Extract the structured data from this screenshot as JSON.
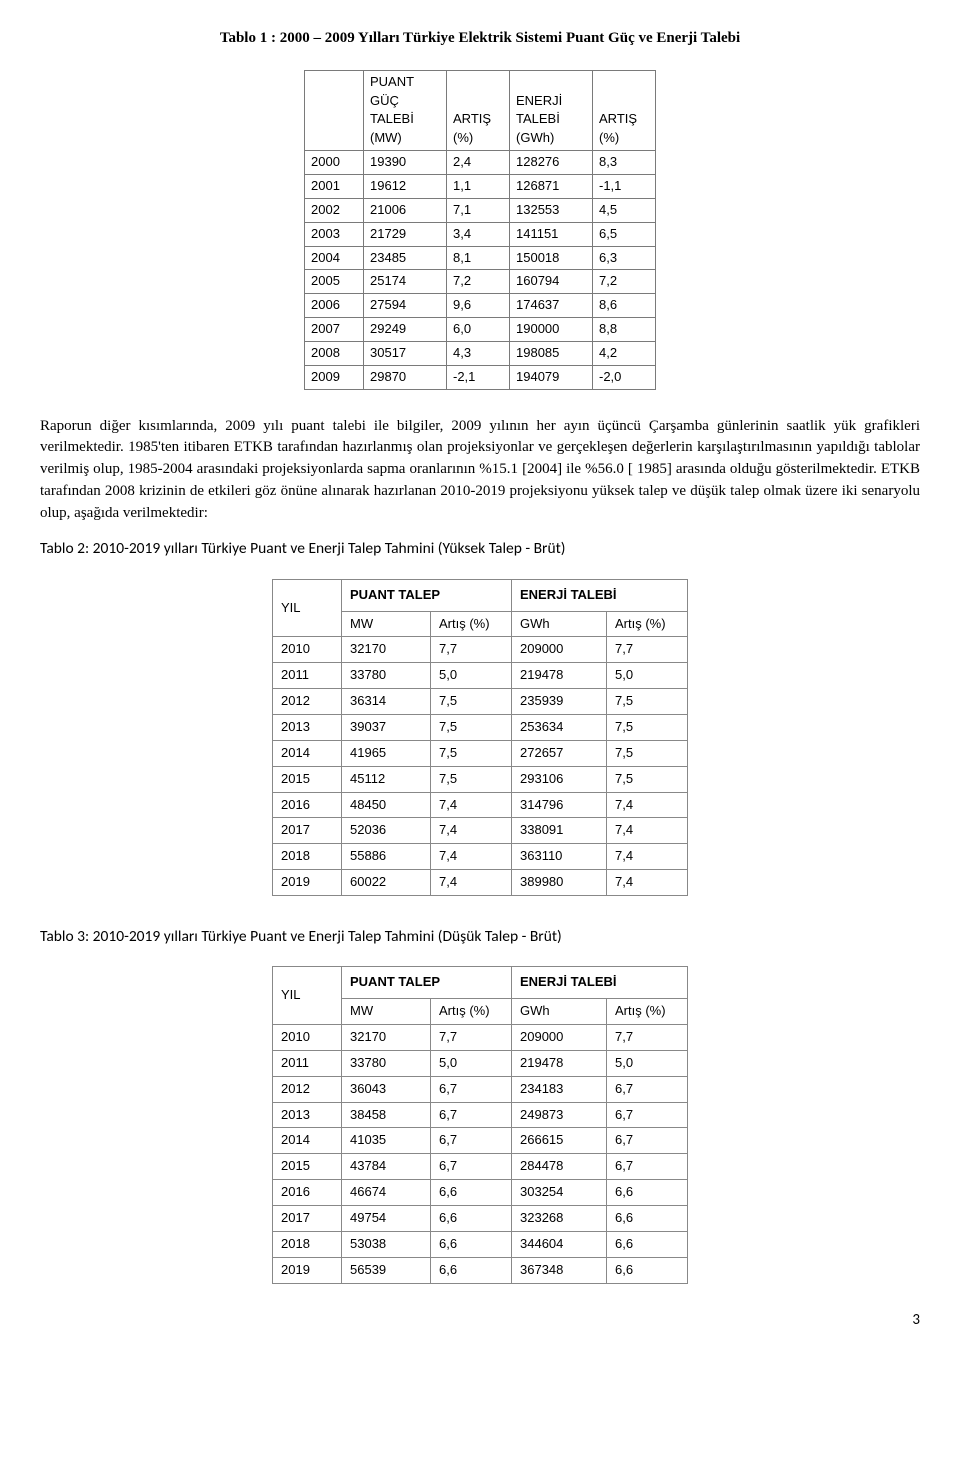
{
  "title_table1": "Tablo 1 : 2000 – 2009 Yılları Türkiye Elektrik Sistemi Puant Güç ve Enerji Talebi",
  "table1": {
    "headers": {
      "col_year_blank": "",
      "col_puant_line1": "PUANT",
      "col_puant_line2": "GÜÇ",
      "col_puant_line3": "TALEBİ",
      "col_puant_line4": "(MW)",
      "col_artis1_line1": "ARTIŞ",
      "col_artis1_line2": "(%)",
      "col_enerji_line1": "ENERJİ",
      "col_enerji_line2": "TALEBİ",
      "col_enerji_line3": "(GWh)",
      "col_artis2_line1": "ARTIŞ",
      "col_artis2_line2": "(%)"
    },
    "rows": [
      [
        "2000",
        "19390",
        "2,4",
        "128276",
        "8,3"
      ],
      [
        "2001",
        "19612",
        "1,1",
        "126871",
        "-1,1"
      ],
      [
        "2002",
        "21006",
        "7,1",
        "132553",
        "4,5"
      ],
      [
        "2003",
        "21729",
        "3,4",
        "141151",
        "6,5"
      ],
      [
        "2004",
        "23485",
        "8,1",
        "150018",
        "6,3"
      ],
      [
        "2005",
        "25174",
        "7,2",
        "160794",
        "7,2"
      ],
      [
        "2006",
        "27594",
        "9,6",
        "174637",
        "8,6"
      ],
      [
        "2007",
        "29249",
        "6,0",
        "190000",
        "8,8"
      ],
      [
        "2008",
        "30517",
        "4,3",
        "198085",
        "4,2"
      ],
      [
        "2009",
        "29870",
        "-2,1",
        "194079",
        "-2,0"
      ]
    ]
  },
  "paragraph1": "Raporun diğer kısımlarında, 2009 yılı puant talebi ile bilgiler, 2009 yılının her ayın üçüncü Çarşamba günlerinin saatlik yük grafikleri verilmektedir. 1985'ten itibaren ETKB tarafından hazırlanmış olan projeksiyonlar ve gerçekleşen değerlerin karşılaştırılmasının yapıldığı tablolar verilmiş olup, 1985-2004 arasındaki projeksiyonlarda sapma oranlarının %15.1 [2004] ile %56.0 [ 1985] arasında olduğu gösterilmektedir. ETKB tarafından 2008 krizinin de etkileri göz önüne alınarak hazırlanan 2010-2019 projeksiyonu yüksek talep ve düşük talep olmak üzere iki senaryolu olup, aşağıda verilmektedir:",
  "subhead2": "Tablo 2: 2010-2019 yılları Türkiye Puant ve Enerji Talep Tahmini (Yüksek Talep - Brüt)",
  "table_group_headers": {
    "yil": "YIL",
    "puant": "PUANT TALEP",
    "enerji": "ENERJİ TALEBİ",
    "mw": "MW",
    "artis": "Artış (%)",
    "gwh": "GWh"
  },
  "table2": {
    "rows": [
      [
        "2010",
        "32170",
        "7,7",
        "209000",
        "7,7"
      ],
      [
        "2011",
        "33780",
        "5,0",
        "219478",
        "5,0"
      ],
      [
        "2012",
        "36314",
        "7,5",
        "235939",
        "7,5"
      ],
      [
        "2013",
        "39037",
        "7,5",
        "253634",
        "7,5"
      ],
      [
        "2014",
        "41965",
        "7,5",
        "272657",
        "7,5"
      ],
      [
        "2015",
        "45112",
        "7,5",
        "293106",
        "7,5"
      ],
      [
        "2016",
        "48450",
        "7,4",
        "314796",
        "7,4"
      ],
      [
        "2017",
        "52036",
        "7,4",
        "338091",
        "7,4"
      ],
      [
        "2018",
        "55886",
        "7,4",
        "363110",
        "7,4"
      ],
      [
        "2019",
        "60022",
        "7,4",
        "389980",
        "7,4"
      ]
    ]
  },
  "subhead3": "Tablo 3: 2010-2019 yılları Türkiye Puant ve Enerji Talep Tahmini (Düşük Talep - Brüt)",
  "table3": {
    "rows": [
      [
        "2010",
        "32170",
        "7,7",
        "209000",
        "7,7"
      ],
      [
        "2011",
        "33780",
        "5,0",
        "219478",
        "5,0"
      ],
      [
        "2012",
        "36043",
        "6,7",
        "234183",
        "6,7"
      ],
      [
        "2013",
        "38458",
        "6,7",
        "249873",
        "6,7"
      ],
      [
        "2014",
        "41035",
        "6,7",
        "266615",
        "6,7"
      ],
      [
        "2015",
        "43784",
        "6,7",
        "284478",
        "6,7"
      ],
      [
        "2016",
        "46674",
        "6,6",
        "303254",
        "6,6"
      ],
      [
        "2017",
        "49754",
        "6,6",
        "323268",
        "6,6"
      ],
      [
        "2018",
        "53038",
        "6,6",
        "344604",
        "6,6"
      ],
      [
        "2019",
        "56539",
        "6,6",
        "367348",
        "6,6"
      ]
    ]
  },
  "page_number": "3"
}
